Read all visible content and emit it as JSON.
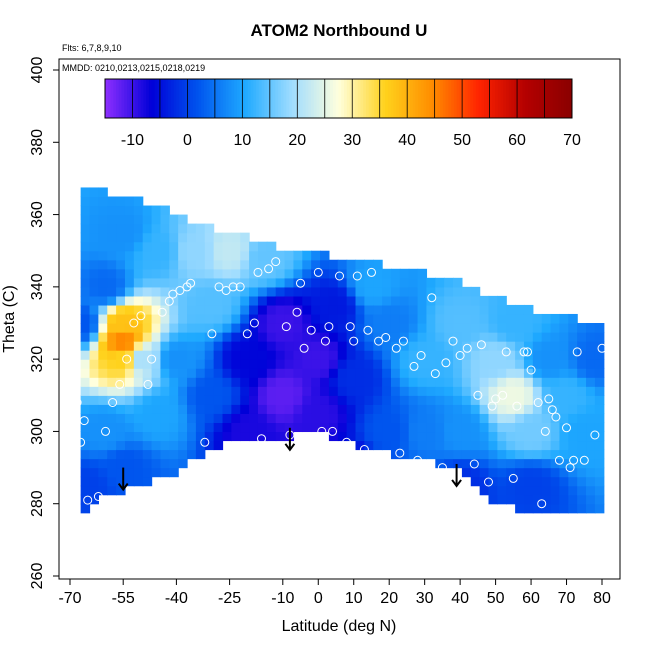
{
  "chart_data": {
    "type": "heatmap",
    "title": "ATOM2 Northbound U",
    "annotations": [
      {
        "text": "Flts: 6,7,8,9,10"
      },
      {
        "text": "MMDD: 0210,0213,0215,0218,0219"
      }
    ],
    "xlabel": "Latitude (deg N)",
    "ylabel": "Theta (C)",
    "xlim": [
      -70,
      80
    ],
    "ylim": [
      260,
      400
    ],
    "x_ticks": [
      -70,
      -55,
      -40,
      -25,
      -10,
      0,
      10,
      20,
      30,
      40,
      50,
      60,
      70,
      80
    ],
    "y_ticks": [
      260,
      280,
      300,
      320,
      340,
      360,
      380,
      400
    ],
    "colorbar": {
      "range": [
        -15,
        70
      ],
      "ticks": [
        -10,
        0,
        10,
        20,
        30,
        40,
        50,
        60,
        70
      ],
      "colors": [
        "#8f2fff",
        "#0000d8",
        "#0055ee",
        "#1faaff",
        "#9fdcff",
        "#ffffdd",
        "#ffd21c",
        "#ff8d00",
        "#ff2400",
        "#b40000",
        "#8a0000"
      ]
    },
    "field_top": [
      [
        -67,
        369
      ],
      [
        -60,
        366
      ],
      [
        -50,
        364
      ],
      [
        -40,
        360
      ],
      [
        -30,
        356
      ],
      [
        -20,
        354
      ],
      [
        -10,
        351
      ],
      [
        0,
        349
      ],
      [
        10,
        348
      ],
      [
        20,
        346
      ],
      [
        30,
        344
      ],
      [
        40,
        342
      ],
      [
        50,
        337
      ],
      [
        60,
        334
      ],
      [
        70,
        332
      ],
      [
        80,
        330
      ]
    ],
    "field_bottom": [
      [
        -67,
        278
      ],
      [
        -60,
        282
      ],
      [
        -50,
        285
      ],
      [
        -40,
        289
      ],
      [
        -30,
        296
      ],
      [
        -20,
        297
      ],
      [
        -10,
        298
      ],
      [
        0,
        300
      ],
      [
        10,
        296
      ],
      [
        20,
        294
      ],
      [
        30,
        292
      ],
      [
        40,
        289
      ],
      [
        50,
        280
      ],
      [
        60,
        278
      ],
      [
        80,
        278
      ]
    ],
    "value_anchors": [
      [
        -67,
        330,
        2
      ],
      [
        -60,
        340,
        4
      ],
      [
        -55,
        355,
        8
      ],
      [
        -45,
        350,
        12
      ],
      [
        -35,
        350,
        18
      ],
      [
        -25,
        350,
        22
      ],
      [
        -15,
        348,
        15
      ],
      [
        -30,
        335,
        14
      ],
      [
        -55,
        325,
        45
      ],
      [
        -55,
        330,
        38
      ],
      [
        -55,
        320,
        36
      ],
      [
        -50,
        320,
        20
      ],
      [
        -45,
        305,
        10
      ],
      [
        -60,
        300,
        8
      ],
      [
        -55,
        290,
        2
      ],
      [
        -65,
        285,
        0
      ],
      [
        -40,
        320,
        8
      ],
      [
        -30,
        310,
        2
      ],
      [
        -20,
        320,
        -6
      ],
      [
        -20,
        300,
        -8
      ],
      [
        -10,
        330,
        -10
      ],
      [
        -10,
        310,
        -12
      ],
      [
        0,
        320,
        -10
      ],
      [
        0,
        305,
        -9
      ],
      [
        5,
        335,
        -4
      ],
      [
        10,
        315,
        -2
      ],
      [
        15,
        340,
        10
      ],
      [
        20,
        330,
        6
      ],
      [
        20,
        300,
        2
      ],
      [
        30,
        320,
        12
      ],
      [
        30,
        300,
        6
      ],
      [
        40,
        330,
        14
      ],
      [
        40,
        300,
        8
      ],
      [
        50,
        320,
        18
      ],
      [
        55,
        310,
        26
      ],
      [
        55,
        330,
        12
      ],
      [
        60,
        300,
        16
      ],
      [
        65,
        320,
        8
      ],
      [
        70,
        310,
        12
      ],
      [
        75,
        300,
        10
      ],
      [
        78,
        320,
        4
      ],
      [
        60,
        285,
        0
      ],
      [
        40,
        285,
        -2
      ],
      [
        10,
        290,
        -6
      ]
    ],
    "observations": [
      [
        -69,
        343
      ],
      [
        -69,
        337
      ],
      [
        -68,
        308
      ],
      [
        -67,
        297
      ],
      [
        -66,
        303
      ],
      [
        -65,
        281
      ],
      [
        -62,
        282
      ],
      [
        -60,
        300
      ],
      [
        -58,
        308
      ],
      [
        -56,
        313
      ],
      [
        -52,
        330
      ],
      [
        -54,
        320
      ],
      [
        -50,
        332
      ],
      [
        -47,
        320
      ],
      [
        -48,
        313
      ],
      [
        -45,
        286
      ],
      [
        -44,
        333
      ],
      [
        -42,
        336
      ],
      [
        -41,
        338
      ],
      [
        -39,
        339
      ],
      [
        -37,
        340
      ],
      [
        -36,
        341
      ],
      [
        -32,
        297
      ],
      [
        -30,
        327
      ],
      [
        -28,
        340
      ],
      [
        -26,
        339
      ],
      [
        -24,
        340
      ],
      [
        -22,
        340
      ],
      [
        -20,
        327
      ],
      [
        -18,
        330
      ],
      [
        -17,
        344
      ],
      [
        -16,
        298
      ],
      [
        -14,
        345
      ],
      [
        -12,
        347
      ],
      [
        -9,
        329
      ],
      [
        -8,
        299
      ],
      [
        -6,
        333
      ],
      [
        -5,
        341
      ],
      [
        -4,
        323
      ],
      [
        -2,
        328
      ],
      [
        0,
        344
      ],
      [
        1,
        300
      ],
      [
        2,
        325
      ],
      [
        3,
        329
      ],
      [
        4,
        300
      ],
      [
        6,
        343
      ],
      [
        8,
        297
      ],
      [
        9,
        329
      ],
      [
        10,
        325
      ],
      [
        11,
        343
      ],
      [
        13,
        295
      ],
      [
        14,
        328
      ],
      [
        15,
        344
      ],
      [
        17,
        325
      ],
      [
        19,
        326
      ],
      [
        22,
        323
      ],
      [
        23,
        294
      ],
      [
        24,
        325
      ],
      [
        27,
        318
      ],
      [
        28,
        292
      ],
      [
        29,
        321
      ],
      [
        32,
        337
      ],
      [
        33,
        316
      ],
      [
        35,
        290
      ],
      [
        36,
        319
      ],
      [
        38,
        325
      ],
      [
        40,
        321
      ],
      [
        42,
        323
      ],
      [
        44,
        291
      ],
      [
        45,
        310
      ],
      [
        46,
        324
      ],
      [
        48,
        286
      ],
      [
        49,
        307
      ],
      [
        50,
        309
      ],
      [
        52,
        310
      ],
      [
        53,
        322
      ],
      [
        55,
        287
      ],
      [
        56,
        307
      ],
      [
        58,
        322
      ],
      [
        59,
        322
      ],
      [
        60,
        317
      ],
      [
        62,
        308
      ],
      [
        63,
        280
      ],
      [
        64,
        300
      ],
      [
        65,
        309
      ],
      [
        66,
        306
      ],
      [
        67,
        304
      ],
      [
        68,
        292
      ],
      [
        70,
        301
      ],
      [
        71,
        290
      ],
      [
        72,
        292
      ],
      [
        73,
        322
      ],
      [
        75,
        292
      ],
      [
        78,
        299
      ],
      [
        80,
        323
      ]
    ],
    "arrows": [
      [
        -55,
        290
      ],
      [
        -8,
        301
      ],
      [
        39,
        291
      ]
    ]
  }
}
